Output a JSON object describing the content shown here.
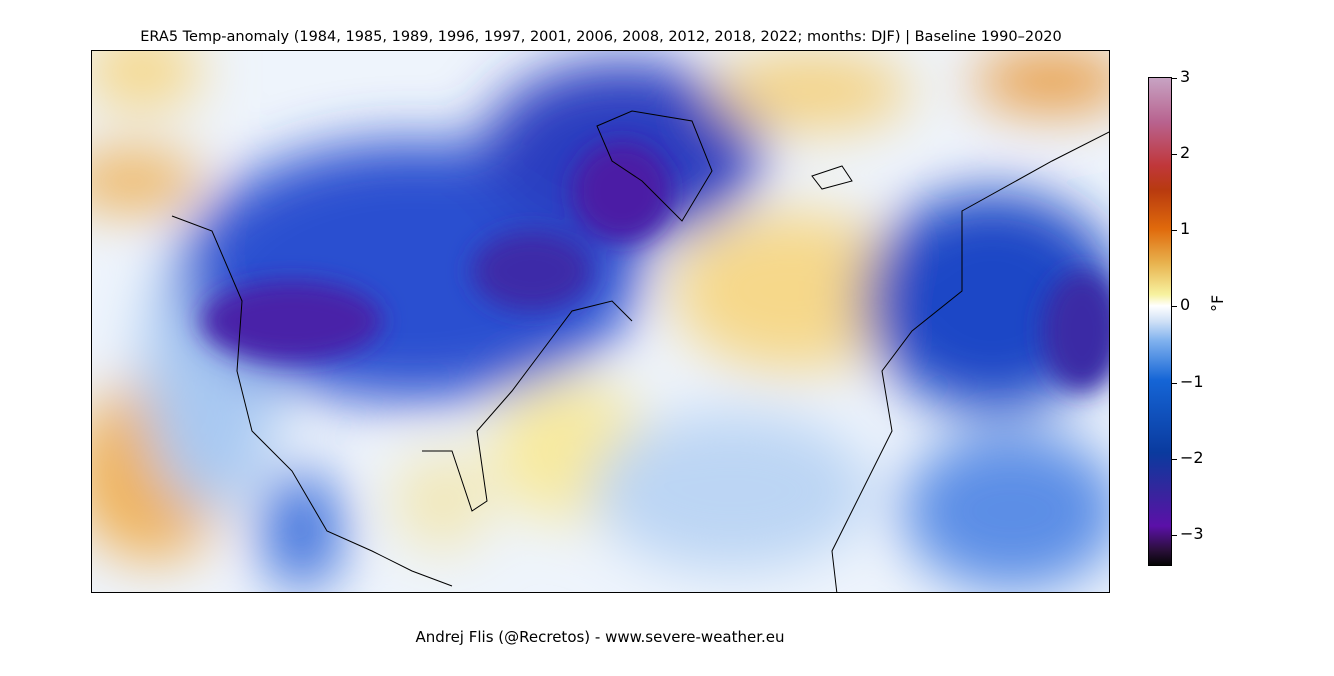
{
  "title": "ERA5 Temp-anomaly (1984, 1985, 1989, 1996, 1997, 2001, 2006, 2008, 2012, 2018, 2022; months: DJF) | Baseline 1990–2020",
  "colorbar": {
    "unit": "°F",
    "ticks": [
      "3",
      "2",
      "1",
      "0",
      "−1",
      "−2",
      "−3"
    ],
    "range": [
      -3.4,
      3
    ],
    "colormap": [
      "#050505",
      "#5b10a8",
      "#0a3a9e",
      "#1565d6",
      "#ffffff",
      "#f7f2a0",
      "#e06a0c",
      "#b83a0f",
      "#c0373a",
      "#c7a3c3"
    ]
  },
  "credit": "Andrej Flis (@Recretos) - www.severe-weather.eu"
}
